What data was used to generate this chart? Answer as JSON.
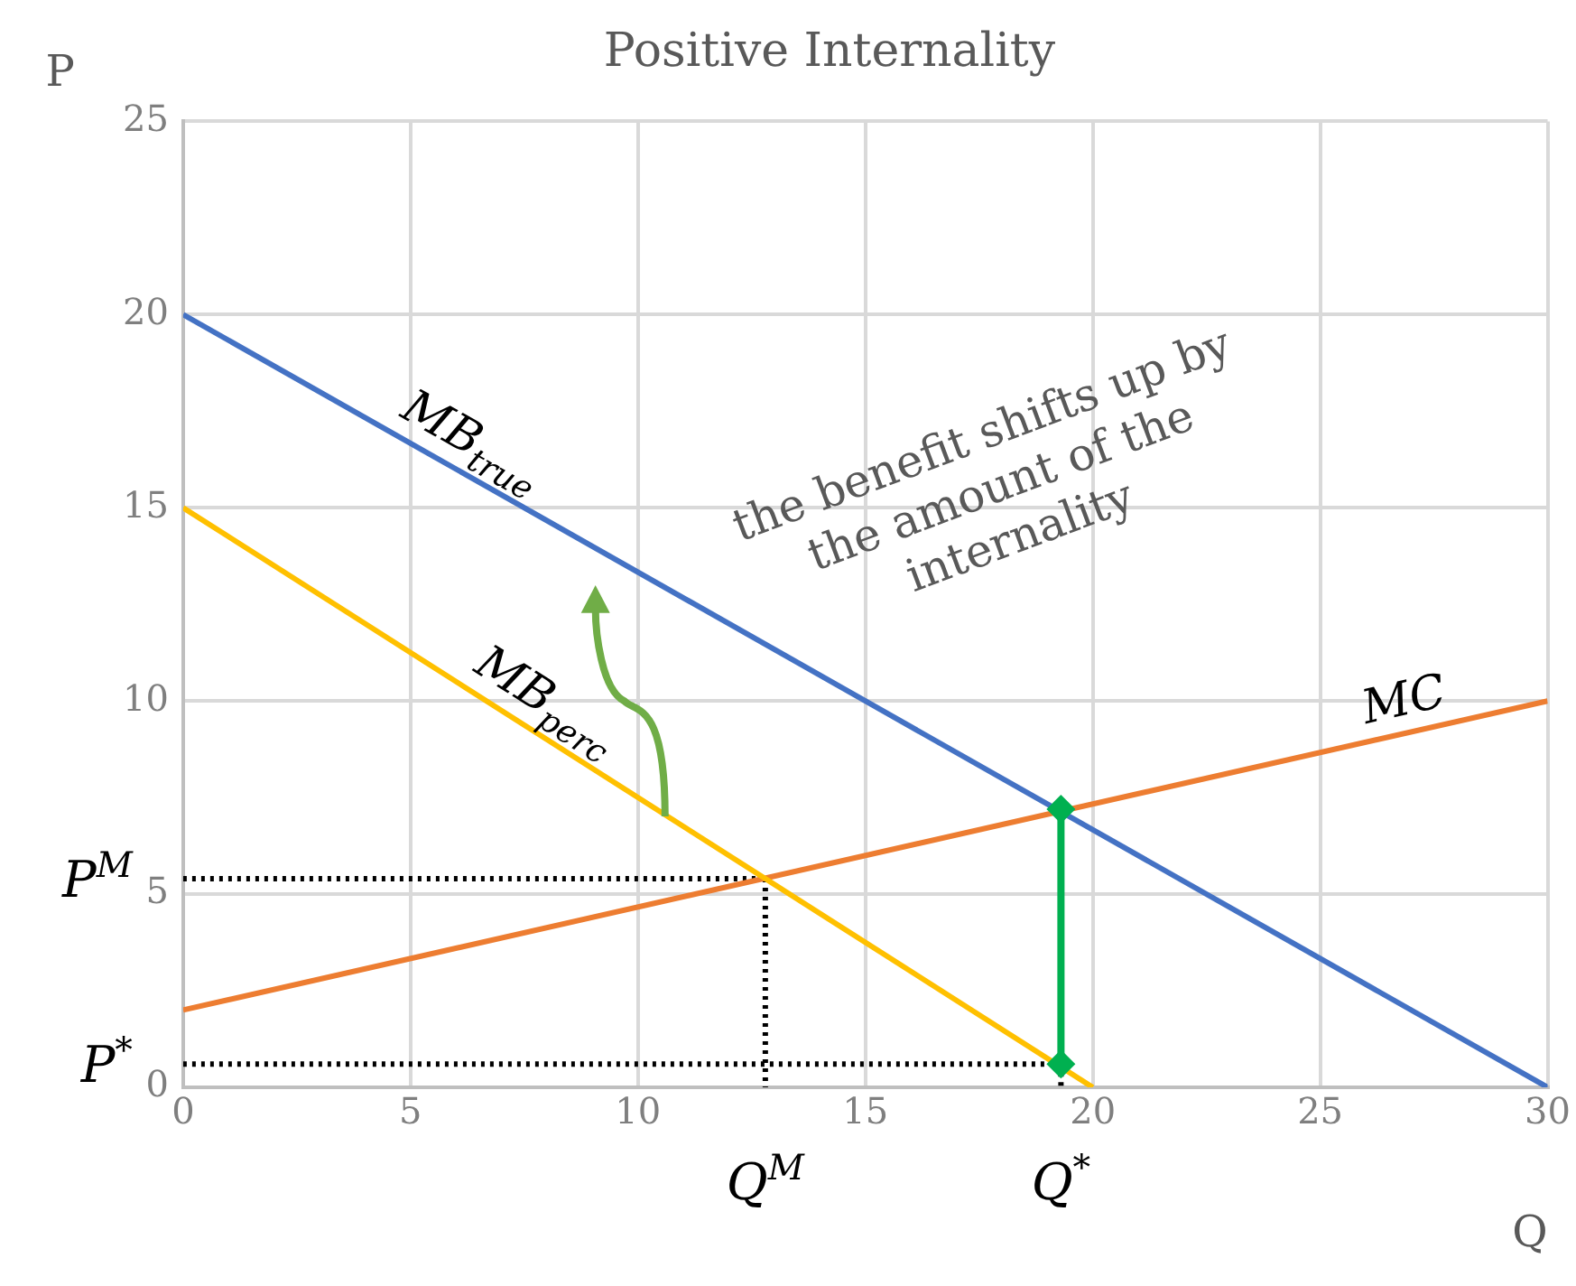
{
  "chart_data": {
    "type": "line",
    "title": "Positive Internality",
    "xlabel": "Q",
    "ylabel": "P",
    "xlim": [
      0,
      30
    ],
    "ylim": [
      0,
      25
    ],
    "xticks": [
      0,
      5,
      10,
      15,
      20,
      25,
      30
    ],
    "yticks": [
      0,
      5,
      10,
      15,
      20,
      25
    ],
    "grid": true,
    "legend": false,
    "marker": "none",
    "line_style": "solid",
    "series": [
      {
        "name": "MB$_{true}$",
        "color": "#4472c4",
        "x": [
          0,
          30
        ],
        "values": [
          20,
          0
        ]
      },
      {
        "name": "MB$_{perc}$",
        "color": "#ffc000",
        "x": [
          0,
          20
        ],
        "values": [
          15,
          0
        ]
      },
      {
        "name": "MC",
        "color": "#ed7d31",
        "x": [
          0,
          30
        ],
        "values": [
          2,
          10
        ]
      },
      {
        "color": "#000000",
        "line_style": "dotted",
        "x": [
          0,
          12.8
        ],
        "values": [
          5.4,
          5.4
        ]
      },
      {
        "color": "#000000",
        "line_style": "dotted",
        "x": [
          12.8,
          12.8
        ],
        "values": [
          5.4,
          0
        ]
      },
      {
        "color": "#000000",
        "line_style": "dotted",
        "x": [
          0,
          19.3
        ],
        "values": [
          0.6,
          0.6
        ]
      },
      {
        "color": "#000000",
        "line_style": "dotted",
        "x": [
          19.3,
          19.3
        ],
        "values": [
          0.6,
          0
        ]
      },
      {
        "color": "#00b050",
        "marker": "diamond",
        "x": [
          19.3,
          19.3
        ],
        "values": [
          0.6,
          7.2
        ]
      }
    ],
    "annotations": [
      "the benefit shifts up by the amount of the internality",
      {
        "text": "P$^{M}$",
        "x": 0,
        "y": 5.4
      },
      {
        "text": "P$^{*}$",
        "x": 0,
        "y": 0.6
      },
      {
        "text": "Q$^{M}$",
        "x": 12.8,
        "y": 0
      },
      {
        "text": "Q$^{*}$",
        "x": 19.3,
        "y": 0
      }
    ]
  }
}
